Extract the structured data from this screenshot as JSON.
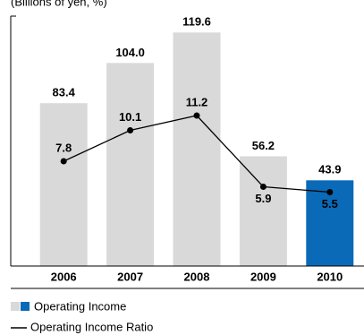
{
  "chart_data": {
    "type": "bar_line",
    "subtitle": "(Billions of yen, %)",
    "categories": [
      "2006",
      "2007",
      "2008",
      "2009",
      "2010"
    ],
    "series": [
      {
        "name": "Operating Income",
        "type": "bar",
        "colors": [
          "#d9d9d9",
          "#d9d9d9",
          "#d9d9d9",
          "#d9d9d9",
          "#0a6ab8"
        ],
        "values": [
          83.4,
          104.0,
          119.6,
          56.2,
          43.9
        ],
        "value_labels": [
          "83.4",
          "104.0",
          "119.6",
          "56.2",
          "43.9"
        ]
      },
      {
        "name": "Operating Income Ratio",
        "type": "line",
        "color": "#000000",
        "axis": "y2",
        "values": [
          7.8,
          10.1,
          11.2,
          5.9,
          5.5
        ]
      }
    ],
    "ylim": [
      0,
      128
    ],
    "y2lim": [
      0,
      18.6
    ]
  }
}
